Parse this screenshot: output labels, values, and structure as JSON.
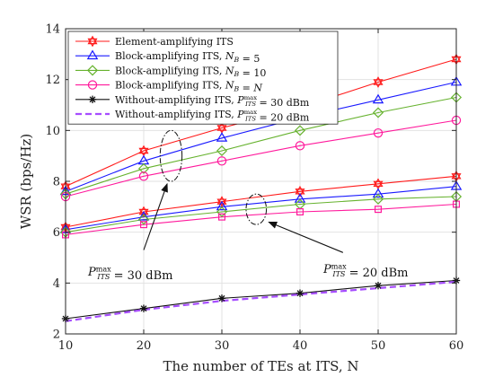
{
  "chart_data": {
    "type": "line",
    "xlabel": "The number of TEs at ITS, N",
    "ylabel": "WSR (bps/Hz)",
    "xlim": [
      10,
      60
    ],
    "ylim": [
      2,
      14
    ],
    "xticks": [
      10,
      20,
      30,
      40,
      50,
      60
    ],
    "yticks": [
      2,
      4,
      6,
      8,
      10,
      12,
      14
    ],
    "grid": true,
    "legend_position": "top-left",
    "x": [
      10,
      20,
      30,
      40,
      50,
      60
    ],
    "legend_order": [
      "s1",
      "s2",
      "s3",
      "s4",
      "s5",
      "s6"
    ],
    "series": [
      {
        "id": "s1",
        "name": "Element-amplifying ITS, P_ITS^max = 30 dBm",
        "legend_label": "Element-amplifying ITS",
        "color": "#ff1a1a",
        "marker": "hexagram",
        "dash": "solid",
        "values": [
          7.8,
          9.2,
          10.1,
          10.9,
          11.9,
          12.8
        ]
      },
      {
        "id": "s2",
        "name": "Block-amplifying ITS, N_B = 5, P_ITS^max = 30 dBm",
        "legend_label": "Block-amplifying ITS, N_B = 5",
        "color": "#1a1aff",
        "marker": "triangle",
        "dash": "solid",
        "values": [
          7.6,
          8.8,
          9.7,
          10.5,
          11.2,
          11.9
        ]
      },
      {
        "id": "s3",
        "name": "Block-amplifying ITS, N_B = 10, P_ITS^max = 30 dBm",
        "legend_label": "Block-amplifying ITS, N_B = 10",
        "color": "#66b22e",
        "marker": "diamond",
        "dash": "solid",
        "values": [
          7.5,
          8.5,
          9.2,
          10.0,
          10.7,
          11.3
        ]
      },
      {
        "id": "s4",
        "name": "Block-amplifying ITS, N_B = N, P_ITS^max = 30 dBm",
        "legend_label": "Block-amplifying ITS, N_B = N",
        "color": "#ff1a9c",
        "marker": "circle",
        "dash": "solid",
        "values": [
          7.4,
          8.2,
          8.8,
          9.4,
          9.9,
          10.4
        ]
      },
      {
        "id": "s1b",
        "name": "Element-amplifying ITS, P_ITS^max = 20 dBm",
        "color": "#ff1a1a",
        "marker": "hexagram",
        "dash": "solid",
        "values": [
          6.2,
          6.8,
          7.2,
          7.6,
          7.9,
          8.2
        ]
      },
      {
        "id": "s2b",
        "name": "Block-amplifying ITS, N_B = 5, P_ITS^max = 20 dBm",
        "color": "#1a1aff",
        "marker": "triangle",
        "dash": "solid",
        "values": [
          6.1,
          6.6,
          7.0,
          7.3,
          7.5,
          7.8
        ]
      },
      {
        "id": "s3b",
        "name": "Block-amplifying ITS, N_B = 10, P_ITS^max = 20 dBm",
        "color": "#66b22e",
        "marker": "diamond",
        "dash": "solid",
        "values": [
          6.0,
          6.5,
          6.8,
          7.1,
          7.3,
          7.4
        ]
      },
      {
        "id": "s4b",
        "name": "Block-amplifying ITS, N_B = N, P_ITS^max = 20 dBm",
        "color": "#ff1a9c",
        "marker": "square",
        "dash": "solid",
        "values": [
          5.9,
          6.3,
          6.6,
          6.8,
          6.9,
          7.1
        ]
      },
      {
        "id": "s5",
        "name": "Without-amplifying ITS, P_ITS^max = 30 dBm",
        "legend_label": "Without-amplifying ITS, P_ITS^max = 30 dBm",
        "color": "#111111",
        "marker": "star",
        "dash": "solid",
        "values": [
          2.6,
          3.0,
          3.4,
          3.6,
          3.9,
          4.1
        ]
      },
      {
        "id": "s6",
        "name": "Without-amplifying ITS, P_ITS^max = 20 dBm",
        "legend_label": "Without-amplifying ITS, P_ITS^max = 20 dBm",
        "color": "#a64dff",
        "marker": "none",
        "dash": "dashed",
        "values": [
          2.5,
          2.95,
          3.3,
          3.55,
          3.8,
          4.05
        ]
      }
    ],
    "annotations": [
      {
        "id": "a30",
        "text": "P_ITS^max = 30 dBm",
        "ellipse_center": [
          23.5,
          9.0
        ],
        "ellipse_radius": [
          1.4,
          1.0
        ],
        "arrow_from": [
          20,
          5.3
        ],
        "arrow_to": [
          23.0,
          7.9
        ]
      },
      {
        "id": "a20",
        "text": "P_ITS^max = 20 dBm",
        "ellipse_center": [
          34.4,
          6.9
        ],
        "ellipse_radius": [
          1.3,
          0.6
        ],
        "arrow_from": [
          45.5,
          5.2
        ],
        "arrow_to": [
          36.0,
          6.4
        ]
      }
    ]
  }
}
